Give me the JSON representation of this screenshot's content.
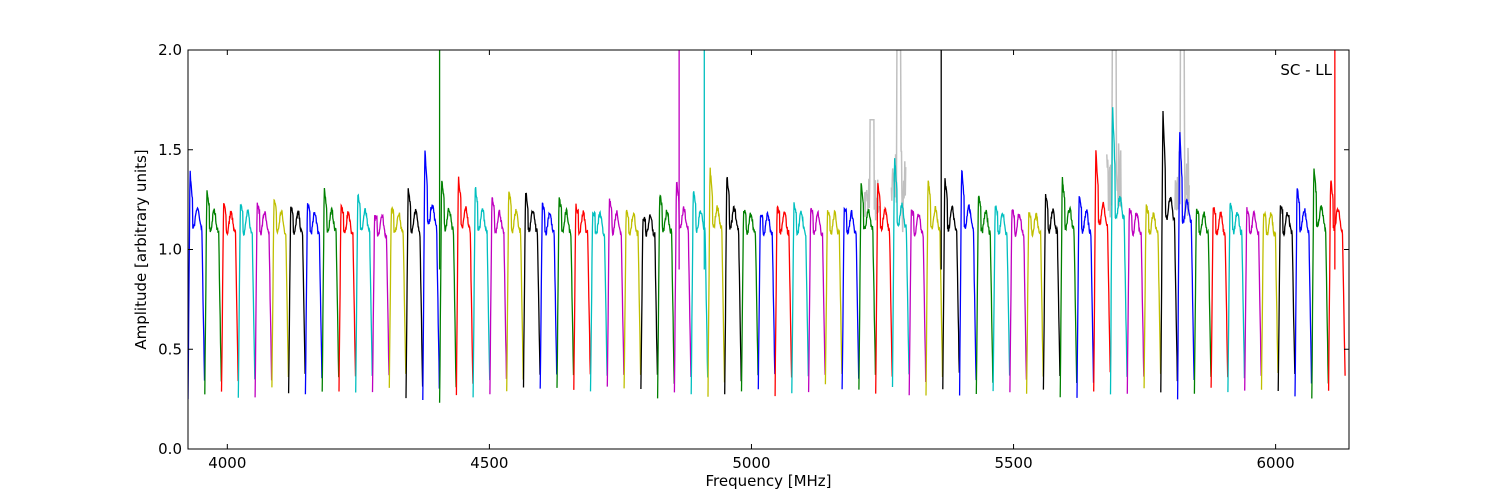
{
  "chart_data": {
    "type": "line",
    "title": "",
    "xlabel": "Frequency [MHz]",
    "ylabel": "Amplitude [arbitrary units]",
    "xlim": [
      3925,
      6140
    ],
    "ylim": [
      0,
      2.0
    ],
    "x_ticks": [
      4000,
      4500,
      5000,
      5500,
      6000
    ],
    "y_ticks": [
      0.0,
      0.5,
      1.0,
      1.5,
      2.0
    ],
    "x_tick_labels": [
      "4000",
      "4500",
      "5000",
      "5500",
      "6000"
    ],
    "y_tick_labels": [
      "0.0",
      "0.5",
      "1.0",
      "1.5",
      "2.0"
    ],
    "annotation": "SC - LL",
    "annotation_position": "top-right",
    "grid": false,
    "legend": false,
    "channel_width_mhz": 32,
    "channel_centers_mhz": [
      3941,
      3973,
      4005,
      4037,
      4069,
      4101,
      4133,
      4165,
      4197,
      4229,
      4261,
      4293,
      4325,
      4357,
      4389,
      4421,
      4453,
      4485,
      4517,
      4549,
      4581,
      4613,
      4645,
      4677,
      4709,
      4741,
      4773,
      4805,
      4837,
      4869,
      4901,
      4933,
      4965,
      4997,
      5029,
      5061,
      5093,
      5125,
      5157,
      5189,
      5221,
      5253,
      5285,
      5317,
      5349,
      5381,
      5413,
      5445,
      5477,
      5509,
      5541,
      5573,
      5605,
      5637,
      5669,
      5701,
      5733,
      5765,
      5797,
      5829,
      5861,
      5893,
      5925,
      5957,
      5989,
      6021,
      6053,
      6085,
      6117
    ],
    "channel_colors": [
      "#0000ff",
      "#008000",
      "#ff0000",
      "#00bfbf",
      "#bf00bf",
      "#bfbf00",
      "#000000",
      "#0000ff",
      "#008000",
      "#ff0000",
      "#00bfbf",
      "#bf00bf",
      "#bfbf00",
      "#000000",
      "#0000ff",
      "#008000",
      "#ff0000",
      "#00bfbf",
      "#bf00bf",
      "#bfbf00",
      "#000000",
      "#0000ff",
      "#008000",
      "#ff0000",
      "#00bfbf",
      "#bf00bf",
      "#bfbf00",
      "#000000",
      "#008000",
      "#bf00bf",
      "#00bfbf",
      "#bfbf00",
      "#000000",
      "#008000",
      "#0000ff",
      "#ff0000",
      "#00bfbf",
      "#bf00bf",
      "#bfbf00",
      "#0000ff",
      "#008000",
      "#ff0000",
      "#00bfbf",
      "#bf00bf",
      "#bfbf00",
      "#000000",
      "#0000ff",
      "#008000",
      "#00bfbf",
      "#bf00bf",
      "#bfbf00",
      "#000000",
      "#008000",
      "#0000ff",
      "#ff0000",
      "#00bfbf",
      "#bf00bf",
      "#bfbf00",
      "#000000",
      "#0000ff",
      "#008000",
      "#ff0000",
      "#00bfbf",
      "#bf00bf",
      "#bfbf00",
      "#000000",
      "#0000ff",
      "#008000",
      "#ff0000"
    ],
    "channel_peak_amplitude": [
      1.39,
      1.29,
      1.23,
      1.24,
      1.23,
      1.25,
      1.22,
      1.23,
      1.3,
      1.22,
      1.29,
      1.16,
      1.22,
      1.3,
      1.51,
      1.36,
      1.37,
      1.32,
      1.26,
      1.3,
      1.29,
      1.23,
      1.26,
      1.22,
      1.19,
      1.25,
      1.19,
      1.16,
      1.28,
      1.35,
      1.3,
      1.41,
      1.38,
      1.2,
      1.18,
      1.22,
      1.23,
      1.2,
      1.2,
      1.22,
      1.33,
      1.35,
      1.47,
      1.2,
      1.36,
      1.36,
      1.41,
      1.27,
      1.22,
      1.2,
      1.18,
      1.28,
      1.36,
      1.27,
      1.5,
      1.73,
      1.21,
      1.22,
      1.71,
      1.6,
      1.2,
      1.22,
      1.23,
      1.2,
      1.18,
      1.23,
      1.31,
      1.42,
      1.36
    ],
    "channel_dip_amplitude": [
      0.26,
      0.26,
      0.28,
      0.27,
      0.27,
      0.3,
      0.29,
      0.28,
      0.29,
      0.28,
      0.29,
      0.3,
      0.3,
      0.25,
      0.24,
      0.22,
      0.26,
      0.26,
      0.28,
      0.29,
      0.31,
      0.3,
      0.3,
      0.29,
      0.29,
      0.31,
      0.3,
      0.29,
      0.26,
      0.28,
      0.27,
      0.25,
      0.26,
      0.3,
      0.3,
      0.28,
      0.29,
      0.29,
      0.31,
      0.29,
      0.3,
      0.29,
      0.31,
      0.27,
      0.28,
      0.3,
      0.26,
      0.27,
      0.3,
      0.28,
      0.29,
      0.29,
      0.25,
      0.27,
      0.3,
      0.28,
      0.28,
      0.3,
      0.27,
      0.26,
      0.28,
      0.3,
      0.29,
      0.3,
      0.3,
      0.3,
      0.25,
      0.25,
      0.28
    ],
    "spikes": [
      {
        "x": 4405,
        "y_top": 2.0,
        "color": "#008000"
      },
      {
        "x": 4862,
        "y_top": 2.0,
        "color": "#bf00bf"
      },
      {
        "x": 4910,
        "y_top": 2.0,
        "color": "#00bfbf"
      },
      {
        "x": 5362,
        "y_top": 2.0,
        "color": "#000000"
      },
      {
        "x": 6113,
        "y_top": 2.0,
        "color": "#ff0000"
      }
    ],
    "gray_background_color": "#c0c0c0",
    "gray_rfi_regions": [
      {
        "x": 5230,
        "amplitude": 1.65
      },
      {
        "x": 5281,
        "amplitude": 2.0
      },
      {
        "x": 5692,
        "amplitude": 2.0
      },
      {
        "x": 5822,
        "amplitude": 2.0
      }
    ]
  }
}
